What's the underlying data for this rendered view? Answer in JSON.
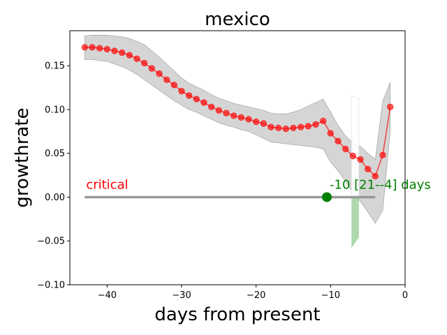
{
  "chart_data": {
    "type": "line",
    "title": "mexico",
    "xlabel": "days from present",
    "ylabel": "growthrate",
    "xlim": [
      -45,
      0
    ],
    "ylim": [
      -0.1,
      0.19
    ],
    "xticks": [
      -40,
      -30,
      -20,
      -10,
      0
    ],
    "xtick_labels": [
      "−40",
      "−30",
      "−20",
      "−10",
      "0"
    ],
    "yticks": [
      -0.1,
      -0.05,
      0.0,
      0.05,
      0.1,
      0.15
    ],
    "ytick_labels": [
      "−0.10",
      "−0.05",
      "0.00",
      "0.05",
      "0.10",
      "0.15"
    ],
    "grid": false,
    "series": [
      {
        "color": "#ff0000",
        "x": [
          -43,
          -42,
          -41,
          -40,
          -39,
          -38,
          -37,
          -36,
          -35,
          -34,
          -33,
          -32,
          -31,
          -30,
          -29,
          -28,
          -27,
          -26,
          -25,
          -24,
          -23,
          -22,
          -21,
          -20,
          -19,
          -18,
          -17,
          -16,
          -15,
          -14,
          -13,
          -12,
          -11,
          -10,
          -9,
          -8,
          -7,
          -6,
          -5,
          -4,
          -3,
          -2
        ],
        "y": [
          0.171,
          0.171,
          0.17,
          0.169,
          0.167,
          0.165,
          0.162,
          0.158,
          0.153,
          0.147,
          0.141,
          0.134,
          0.128,
          0.121,
          0.116,
          0.112,
          0.108,
          0.103,
          0.099,
          0.096,
          0.093,
          0.091,
          0.089,
          0.086,
          0.084,
          0.08,
          0.079,
          0.078,
          0.079,
          0.08,
          0.081,
          0.083,
          0.087,
          0.073,
          0.064,
          0.055,
          0.047,
          0.043,
          0.032,
          0.024,
          0.048,
          0.103
        ],
        "band_upper": [
          0.184,
          0.185,
          0.185,
          0.185,
          0.184,
          0.183,
          0.181,
          0.178,
          0.174,
          0.167,
          0.16,
          0.152,
          0.144,
          0.136,
          0.13,
          0.126,
          0.122,
          0.117,
          0.113,
          0.11,
          0.107,
          0.105,
          0.103,
          0.101,
          0.099,
          0.096,
          0.095,
          0.095,
          0.097,
          0.1,
          0.104,
          0.108,
          0.112,
          0.097,
          0.082,
          0.07,
          0.062,
          0.058,
          0.05,
          0.043,
          0.11,
          0.131
        ],
        "band_lower": [
          0.157,
          0.157,
          0.156,
          0.155,
          0.152,
          0.149,
          0.145,
          0.14,
          0.134,
          0.128,
          0.122,
          0.116,
          0.11,
          0.105,
          0.1,
          0.097,
          0.093,
          0.089,
          0.085,
          0.082,
          0.08,
          0.077,
          0.075,
          0.071,
          0.067,
          0.063,
          0.062,
          0.061,
          0.06,
          0.059,
          0.058,
          0.057,
          0.055,
          0.04,
          0.03,
          0.018,
          0.005,
          -0.005,
          -0.017,
          -0.03,
          -0.015,
          0.075
        ]
      }
    ],
    "critical_line": {
      "y": 0.0,
      "x_start": -43,
      "x_end": -4,
      "label": "critical",
      "label_color": "#ff0000",
      "line_color": "#999999"
    },
    "crossing": {
      "x": -10.5,
      "y": 0.0,
      "label": "-10 [21--4] days",
      "color": "#008000"
    },
    "green_band": {
      "x": [
        -7.2,
        -6.2
      ],
      "y_top": 0.0,
      "y_bottom": -0.058,
      "color": "#6ab96a"
    },
    "white_band": {
      "x": [
        -7.2,
        -6.2
      ],
      "y_top": 0.115,
      "y_bottom": 0.0
    }
  }
}
